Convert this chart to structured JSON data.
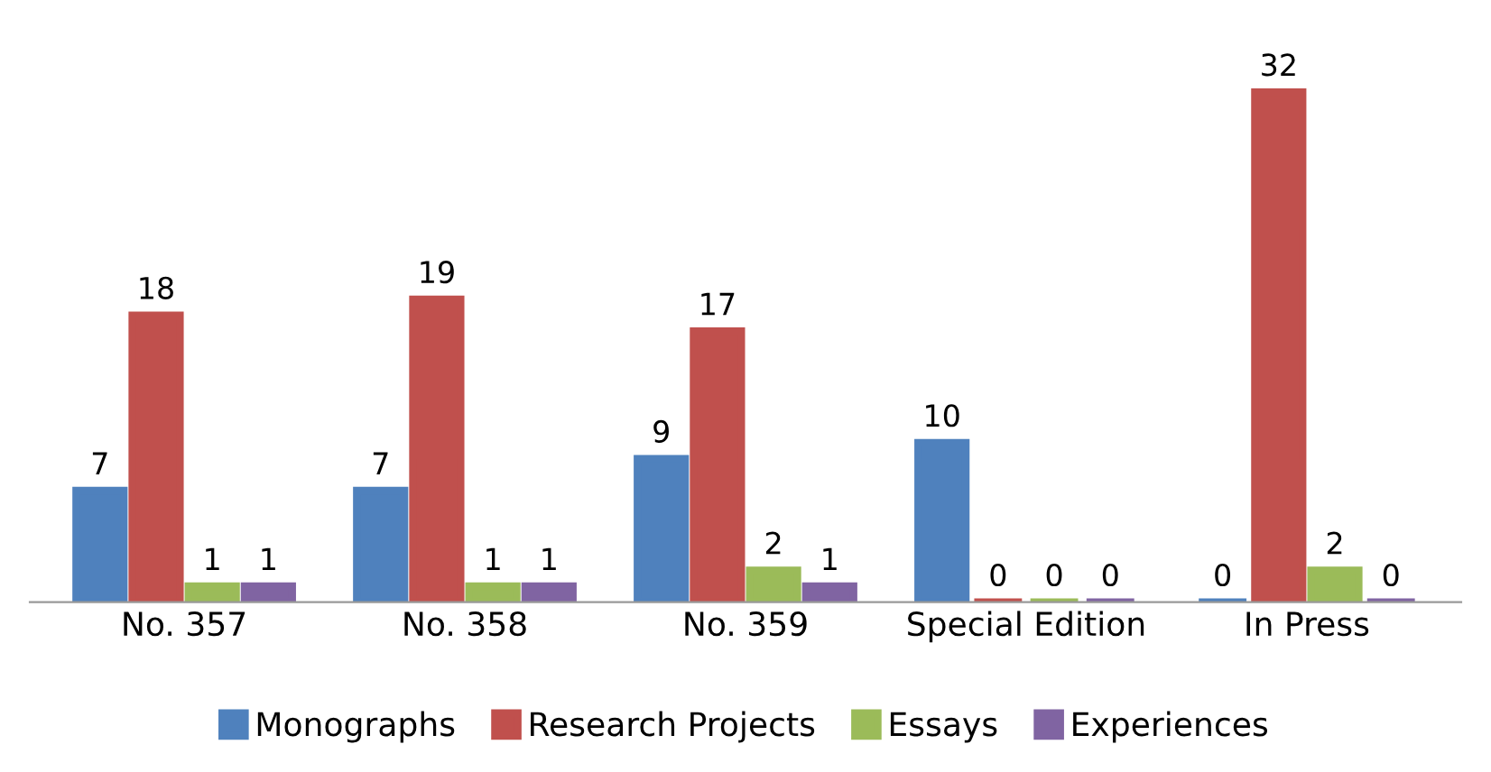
{
  "chart_data": {
    "type": "bar",
    "categories": [
      "No. 357",
      "No. 358",
      "No. 359",
      "Special Edition",
      "In Press"
    ],
    "series": [
      {
        "name": "Monographs",
        "color": "#4f81bd",
        "values": [
          7,
          7,
          9,
          10,
          0
        ]
      },
      {
        "name": "Research Projects",
        "color": "#c0504d",
        "values": [
          18,
          19,
          17,
          0,
          32
        ]
      },
      {
        "name": "Essays",
        "color": "#9bbb59",
        "values": [
          1,
          1,
          2,
          0,
          2
        ]
      },
      {
        "name": "Experiences",
        "color": "#8064a2",
        "values": [
          1,
          1,
          1,
          0,
          0
        ]
      }
    ],
    "data_labels": true,
    "legend": "bottom",
    "grid": false,
    "tick_labels": "x"
  }
}
